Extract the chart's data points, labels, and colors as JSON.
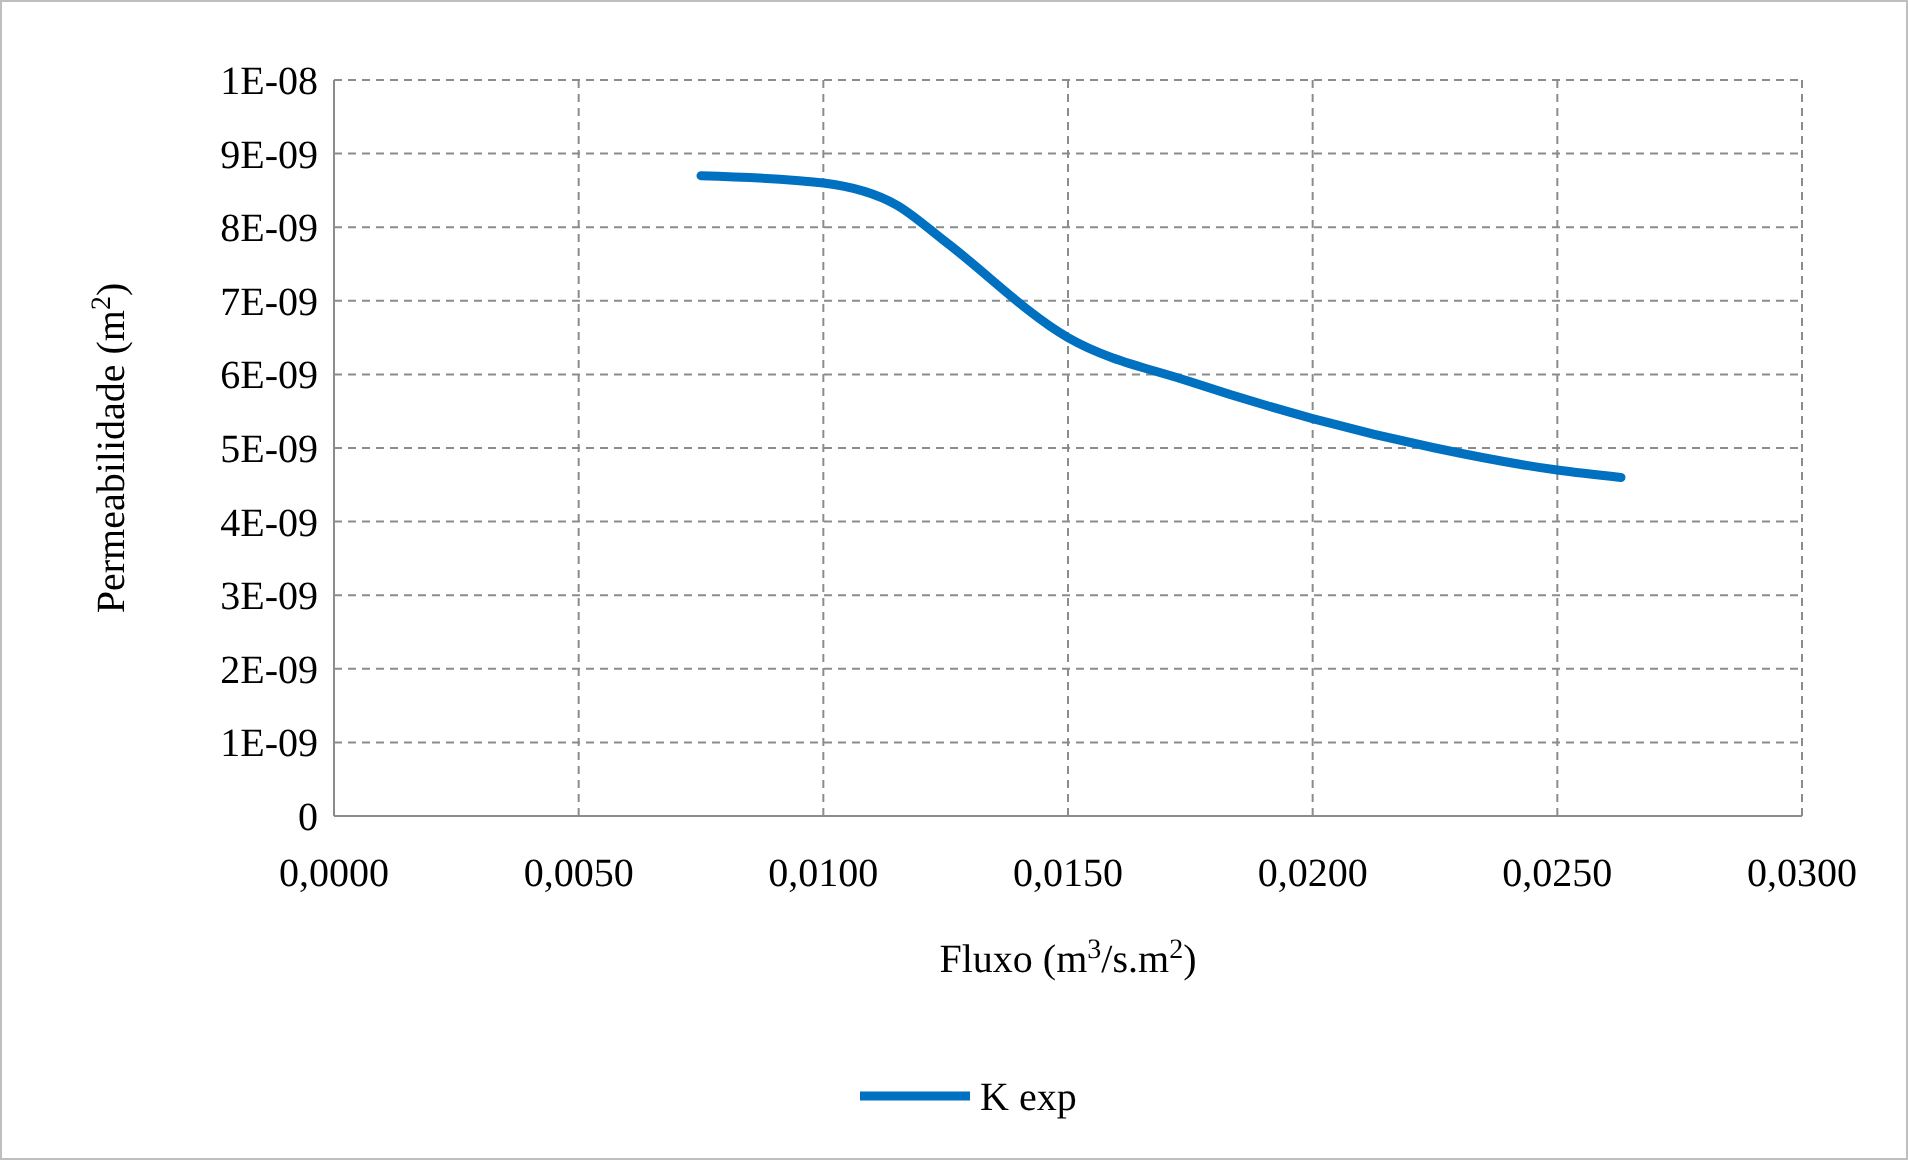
{
  "chart_data": {
    "type": "line",
    "xlabel": "Fluxo (m$^{3}$/s.m$^{2}$)",
    "ylabel": "Permeabilidade (m$^{2}$)",
    "x": [
      0.0075,
      0.01,
      0.0115,
      0.0125,
      0.015,
      0.0175,
      0.02,
      0.0225,
      0.025,
      0.0263
    ],
    "series": [
      {
        "name": "K exp",
        "color": "#0070c0",
        "values": [
          8.7e-09,
          8.6e-09,
          8.3e-09,
          7.8e-09,
          6.5e-09,
          5.9e-09,
          5.4e-09,
          5e-09,
          4.7e-09,
          4.6e-09
        ]
      }
    ],
    "xlim": [
      0,
      0.03
    ],
    "xticks": [
      {
        "value": 0,
        "label": "0,0000"
      },
      {
        "value": 0.005,
        "label": "0,0050"
      },
      {
        "value": 0.01,
        "label": "0,0100"
      },
      {
        "value": 0.015,
        "label": "0,0150"
      },
      {
        "value": 0.02,
        "label": "0,0200"
      },
      {
        "value": 0.025,
        "label": "0,0250"
      },
      {
        "value": 0.03,
        "label": "0,0300"
      }
    ],
    "ylim": [
      0,
      1e-08
    ],
    "yticks": [
      0,
      {
        "value": 1e-09,
        "label": "1E-09"
      },
      {
        "value": 2e-09,
        "label": "2E-09"
      },
      {
        "value": 3e-09,
        "label": "3E-09"
      },
      {
        "value": 4e-09,
        "label": "4E-09"
      },
      {
        "value": 5e-09,
        "label": "5E-09"
      },
      {
        "value": 6e-09,
        "label": "6E-09"
      },
      {
        "value": 7e-09,
        "label": "7E-09"
      },
      {
        "value": 8e-09,
        "label": "8E-09"
      },
      {
        "value": 9e-09,
        "label": "9E-09"
      },
      {
        "value": 1e-08,
        "label": "1E-08"
      }
    ],
    "grid": true,
    "legend": "bottom",
    "line_style": "solid"
  }
}
